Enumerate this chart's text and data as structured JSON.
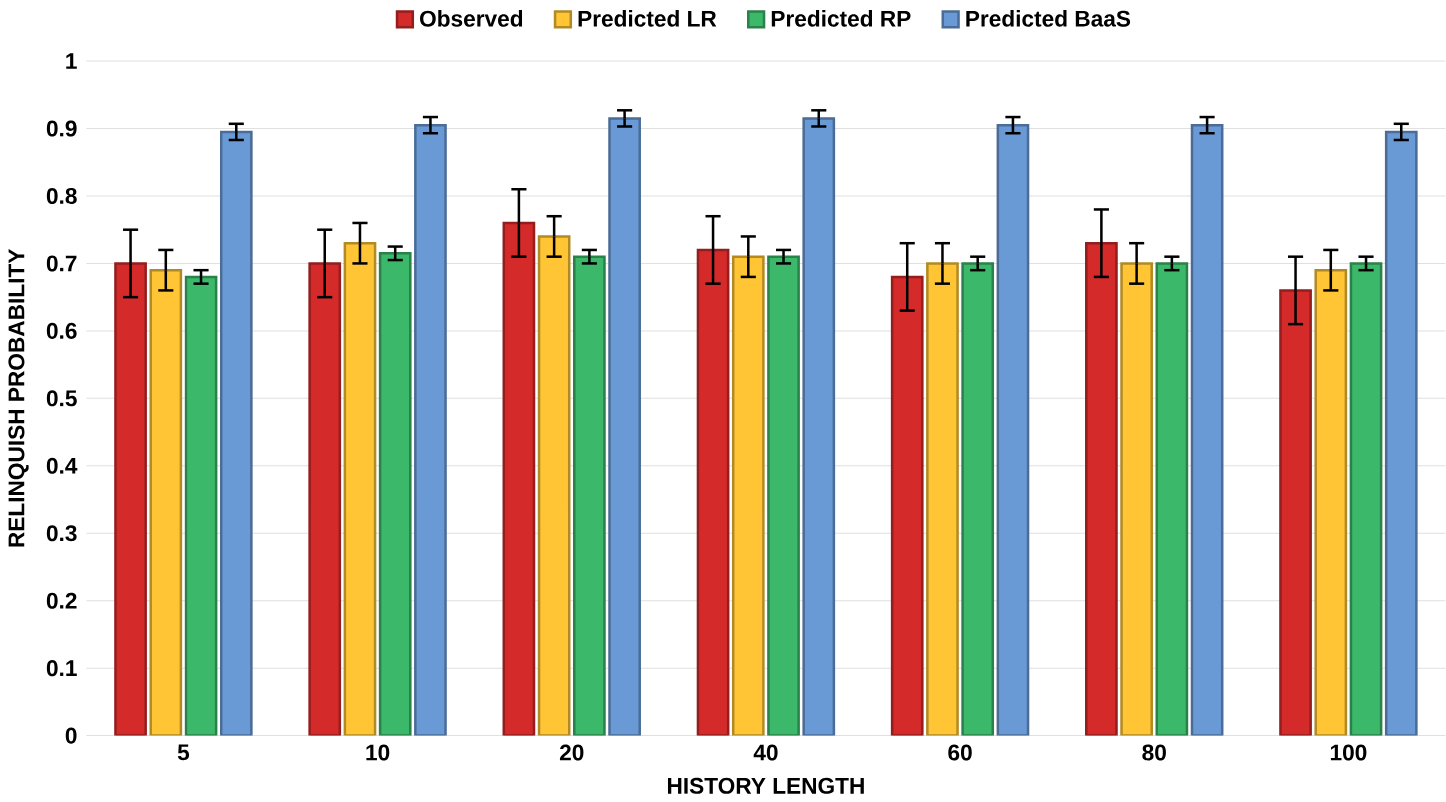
{
  "chart_data": {
    "type": "bar",
    "xlabel": "HISTORY LENGTH",
    "ylabel": "RELINQUISH PROBABILITY",
    "categories": [
      "5",
      "10",
      "20",
      "40",
      "60",
      "80",
      "100"
    ],
    "series": [
      {
        "name": "Observed",
        "color": "#d42a2a",
        "values": [
          0.7,
          0.7,
          0.76,
          0.72,
          0.68,
          0.73,
          0.66
        ],
        "errors": [
          0.05,
          0.05,
          0.05,
          0.05,
          0.05,
          0.05,
          0.05
        ]
      },
      {
        "name": "Predicted LR",
        "color": "#ffc535",
        "values": [
          0.69,
          0.73,
          0.74,
          0.71,
          0.7,
          0.7,
          0.69
        ],
        "errors": [
          0.03,
          0.03,
          0.03,
          0.03,
          0.03,
          0.03,
          0.03
        ]
      },
      {
        "name": "Predicted RP",
        "color": "#3cb86a",
        "values": [
          0.68,
          0.715,
          0.71,
          0.71,
          0.7,
          0.7,
          0.7
        ],
        "errors": [
          0.01,
          0.01,
          0.01,
          0.01,
          0.01,
          0.01,
          0.01
        ]
      },
      {
        "name": "Predicted BaaS",
        "color": "#6a9ad6",
        "values": [
          0.895,
          0.905,
          0.915,
          0.915,
          0.905,
          0.905,
          0.895
        ],
        "errors": [
          0.012,
          0.012,
          0.012,
          0.012,
          0.012,
          0.012,
          0.012
        ]
      }
    ],
    "ylim": [
      0,
      1
    ],
    "yticks": [
      0,
      0.1,
      0.2,
      0.3,
      0.4,
      0.5,
      0.6,
      0.7,
      0.8,
      0.9,
      1
    ],
    "grid": "y",
    "legend": "top"
  }
}
